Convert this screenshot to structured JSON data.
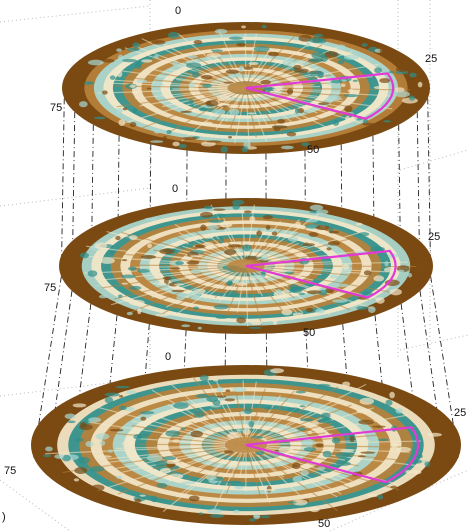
{
  "figure": {
    "colors": {
      "background": "#ffffff",
      "brown_dark": "#7a4a12",
      "brown_mid": "#b7813b",
      "cream": "#f3e7c9",
      "teal": "#2f8f8a",
      "teal_light": "#a9d9d3",
      "sector_outline": "#e23ad6",
      "projection_line": "#222222",
      "frame_dotted": "#b9b9b9"
    },
    "layers": [
      {
        "tick_labels": {
          "top": "0",
          "right": "25",
          "bottom": "50",
          "left": "75"
        }
      },
      {
        "tick_labels": {
          "top": "0",
          "right": "25",
          "bottom": "50",
          "left": "75"
        }
      },
      {
        "tick_labels": {
          "top": "0",
          "right": "25",
          "bottom": "50",
          "left": "75"
        }
      }
    ],
    "corner_labels": {
      "bottom_left": ")"
    }
  }
}
